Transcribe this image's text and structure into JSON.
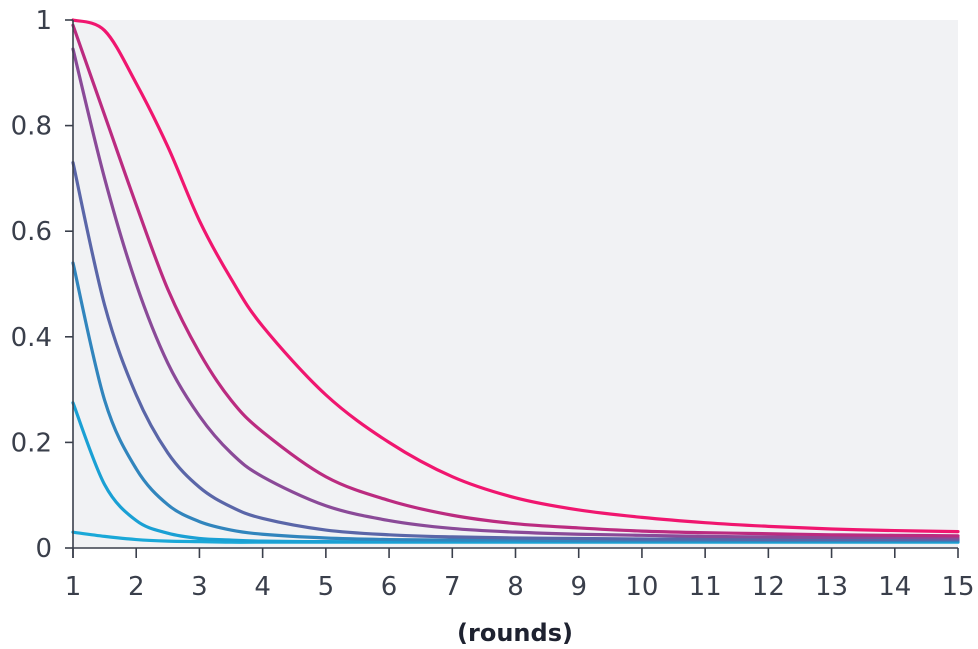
{
  "chart_data": {
    "type": "line",
    "title": "",
    "xlabel": "(rounds)",
    "ylabel": "",
    "xlim": [
      1,
      15
    ],
    "ylim": [
      0,
      1
    ],
    "grid": false,
    "legend": "none",
    "background": "#f1f2f4",
    "x_ticks": [
      "1",
      "2",
      "3",
      "4",
      "5",
      "6",
      "7",
      "8",
      "9",
      "10",
      "11",
      "12",
      "13",
      "14",
      "15"
    ],
    "y_ticks": [
      "0",
      "0.2",
      "0.4",
      "0.6",
      "0.8",
      "1"
    ],
    "x": [
      1,
      1.5,
      2,
      2.5,
      3,
      3.5,
      4,
      5,
      6,
      7,
      8,
      9,
      10,
      11,
      12,
      13,
      14,
      15
    ],
    "series": [
      {
        "color": "#f0166f",
        "values": [
          1.0,
          0.98,
          0.88,
          0.76,
          0.62,
          0.51,
          0.42,
          0.29,
          0.2,
          0.135,
          0.095,
          0.072,
          0.058,
          0.048,
          0.041,
          0.036,
          0.033,
          0.031
        ]
      },
      {
        "color": "#bb2b80",
        "values": [
          0.99,
          0.82,
          0.65,
          0.49,
          0.37,
          0.28,
          0.22,
          0.135,
          0.09,
          0.062,
          0.046,
          0.038,
          0.032,
          0.029,
          0.027,
          0.025,
          0.024,
          0.023
        ]
      },
      {
        "color": "#8a4a98",
        "values": [
          0.945,
          0.7,
          0.5,
          0.35,
          0.25,
          0.18,
          0.135,
          0.08,
          0.052,
          0.037,
          0.03,
          0.026,
          0.024,
          0.022,
          0.021,
          0.02,
          0.02,
          0.019
        ]
      },
      {
        "color": "#5a66a8",
        "values": [
          0.73,
          0.46,
          0.29,
          0.18,
          0.115,
          0.078,
          0.056,
          0.034,
          0.025,
          0.021,
          0.019,
          0.018,
          0.017,
          0.017,
          0.016,
          0.016,
          0.016,
          0.016
        ]
      },
      {
        "color": "#3185bd",
        "values": [
          0.54,
          0.28,
          0.15,
          0.082,
          0.05,
          0.034,
          0.026,
          0.019,
          0.016,
          0.015,
          0.015,
          0.014,
          0.014,
          0.014,
          0.014,
          0.014,
          0.014,
          0.014
        ]
      },
      {
        "color": "#1aa0d4",
        "values": [
          0.275,
          0.12,
          0.052,
          0.028,
          0.018,
          0.015,
          0.013,
          0.012,
          0.012,
          0.012,
          0.012,
          0.012,
          0.012,
          0.012,
          0.012,
          0.012,
          0.012,
          0.012
        ]
      },
      {
        "color": "#1aa8d8",
        "values": [
          0.03,
          0.022,
          0.016,
          0.013,
          0.012,
          0.011,
          0.011,
          0.011,
          0.011,
          0.011,
          0.011,
          0.011,
          0.011,
          0.011,
          0.011,
          0.011,
          0.011,
          0.011
        ]
      }
    ]
  }
}
